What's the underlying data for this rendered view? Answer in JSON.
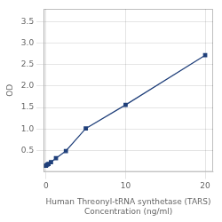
{
  "chart_data": {
    "type": "line",
    "xlabel": [
      "Human Threonyl-tRNA synthetase (TARS)",
      "Concentration (ng/ml)"
    ],
    "ylabel": "OD",
    "series": [
      {
        "name": "OD",
        "color": "#1F3F7A",
        "marker": "square",
        "line_style": "solid",
        "x": [
          0,
          0.156,
          0.313,
          0.625,
          1.25,
          2.5,
          5,
          10,
          20
        ],
        "values": [
          0.146,
          0.168,
          0.188,
          0.228,
          0.318,
          0.488,
          1.012,
          1.562,
          2.72
        ]
      }
    ],
    "xlim": [
      -0.3,
      21
    ],
    "xticks": [
      0,
      10,
      20
    ],
    "ylim": [
      0.0,
      3.8
    ],
    "yticks": [
      0.5,
      {
        "value": 1.0,
        "label": "1.0"
      },
      1.5,
      {
        "value": 2.0,
        "label": "2.0"
      },
      2.5,
      {
        "value": 3.0,
        "label": "3.0"
      },
      3.5
    ],
    "grid": true
  }
}
